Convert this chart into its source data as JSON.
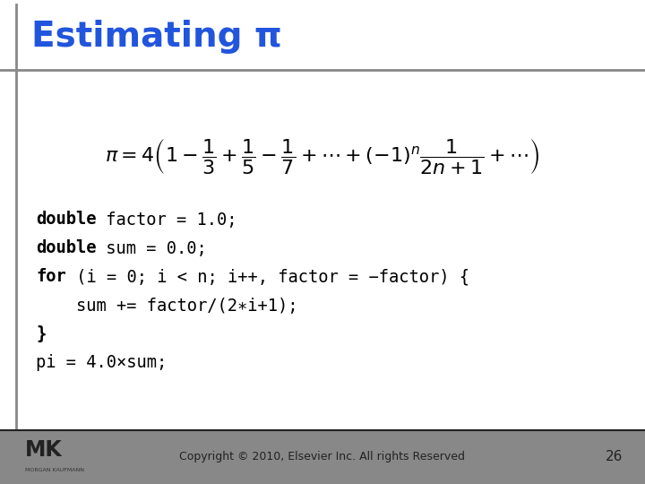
{
  "title": "Estimating π",
  "title_color": "#2255dd",
  "bg_color": "#ffffff",
  "footer_bg": "#888888",
  "footer_text": "Copyright © 2010, Elsevier Inc. All rights Reserved",
  "footer_page": "26",
  "code_lines": [
    {
      "bold_part": "double",
      "normal_part": " factor = 1.0;"
    },
    {
      "bold_part": "double",
      "normal_part": " sum = 0.0;"
    },
    {
      "bold_part": "for",
      "normal_part": " (i = 0; i < n; i++, factor = −factor) {"
    },
    {
      "bold_part": "",
      "normal_part": "    sum += factor/(2∗i+1);"
    },
    {
      "bold_part": "}",
      "normal_part": ""
    },
    {
      "bold_part": "",
      "normal_part": "pi = 4.0×sum;"
    }
  ]
}
